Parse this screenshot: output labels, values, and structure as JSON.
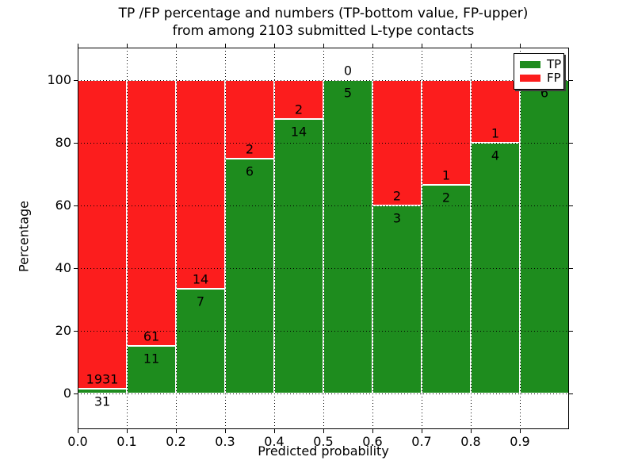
{
  "title": {
    "line1": "TP /FP percentage and numbers (TP-bottom value, FP-upper)",
    "line2": "from among 2103 submitted L-type contacts"
  },
  "chart_data": {
    "type": "bar",
    "stacked": true,
    "title": "TP /FP percentage and numbers (TP-bottom value, FP-upper)\nfrom among 2103 submitted L-type contacts",
    "xlabel": "Predicted probability",
    "ylabel": "Percentage",
    "total_contacts": 2103,
    "bin_width": 0.1,
    "categories": [
      "0.0-0.1",
      "0.1-0.2",
      "0.2-0.3",
      "0.3-0.4",
      "0.4-0.5",
      "0.5-0.6",
      "0.6-0.7",
      "0.7-0.8",
      "0.8-0.9",
      "0.9-1.0"
    ],
    "x_tick_labels": [
      "0.0",
      "0.1",
      "0.2",
      "0.3",
      "0.4",
      "0.5",
      "0.6",
      "0.7",
      "0.8",
      "0.9"
    ],
    "y_ticks": [
      0,
      20,
      40,
      60,
      80,
      100
    ],
    "ylim": [
      -11.4,
      110.4
    ],
    "xlim": [
      0.0,
      1.0
    ],
    "grid": "dotted",
    "annotation_rule": "TP count below segment boundary, FP count above segment boundary",
    "series": [
      {
        "name": "TP",
        "color": "#1e8c1e",
        "counts": [
          31,
          11,
          7,
          6,
          14,
          5,
          3,
          2,
          4,
          6
        ],
        "pct": [
          1.58,
          15.28,
          33.33,
          75.0,
          87.5,
          100.0,
          60.0,
          66.67,
          80.0,
          100.0
        ]
      },
      {
        "name": "FP",
        "color": "#fc1d1d",
        "counts": [
          1931,
          61,
          14,
          2,
          2,
          0,
          2,
          1,
          1,
          0
        ],
        "pct": [
          98.42,
          84.72,
          66.67,
          25.0,
          12.5,
          0.0,
          40.0,
          33.33,
          20.0,
          0.0
        ]
      }
    ],
    "legend": {
      "position": "upper right",
      "entries": [
        "TP",
        "FP"
      ]
    }
  }
}
